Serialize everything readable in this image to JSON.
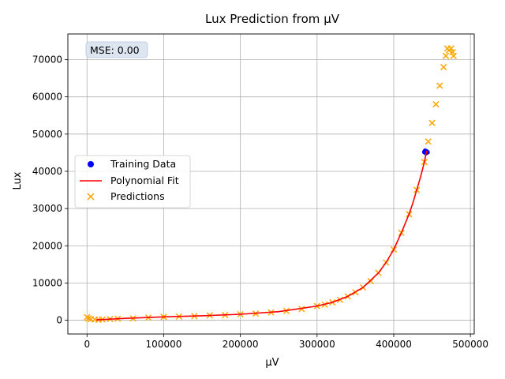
{
  "chart_data": {
    "type": "scatter",
    "title": "Lux Prediction from µV",
    "xlabel": "µV",
    "ylabel": "Lux",
    "xlim": [
      -25000,
      505000
    ],
    "ylim": [
      -3700,
      76900
    ],
    "x_ticks": [
      0,
      100000,
      200000,
      300000,
      400000,
      500000
    ],
    "y_ticks": [
      0,
      10000,
      20000,
      30000,
      40000,
      50000,
      60000,
      70000
    ],
    "grid": true,
    "legend_placement": "center-left",
    "annotation": "MSE: 0.00",
    "colors": {
      "training": "#0000ff",
      "fit": "#ff0000",
      "predictions": "#ffa500"
    },
    "series": [
      {
        "name": "Training Data",
        "kind": "scatter-dot",
        "points": [
          [
            440000,
            45200
          ],
          [
            441000,
            45500
          ],
          [
            442000,
            44900
          ],
          [
            443000,
            45300
          ],
          [
            444000,
            45100
          ]
        ]
      },
      {
        "name": "Polynomial Fit",
        "kind": "line",
        "points": [
          [
            12000,
            100
          ],
          [
            50000,
            500
          ],
          [
            100000,
            900
          ],
          [
            150000,
            1200
          ],
          [
            200000,
            1600
          ],
          [
            250000,
            2300
          ],
          [
            300000,
            3800
          ],
          [
            320000,
            4800
          ],
          [
            340000,
            6400
          ],
          [
            360000,
            8800
          ],
          [
            380000,
            12700
          ],
          [
            390000,
            15500
          ],
          [
            400000,
            19000
          ],
          [
            410000,
            23500
          ],
          [
            420000,
            28500
          ],
          [
            425000,
            31500
          ],
          [
            430000,
            35000
          ],
          [
            435000,
            38500
          ],
          [
            440000,
            42500
          ],
          [
            443000,
            45500
          ]
        ]
      },
      {
        "name": "Predictions",
        "kind": "scatter-x",
        "points": [
          [
            0,
            800
          ],
          [
            2000,
            500
          ],
          [
            5000,
            300
          ],
          [
            10000,
            200
          ],
          [
            15000,
            150
          ],
          [
            20000,
            200
          ],
          [
            30000,
            300
          ],
          [
            40000,
            400
          ],
          [
            60000,
            500
          ],
          [
            80000,
            700
          ],
          [
            100000,
            900
          ],
          [
            120000,
            1000
          ],
          [
            140000,
            1100
          ],
          [
            160000,
            1300
          ],
          [
            180000,
            1400
          ],
          [
            200000,
            1600
          ],
          [
            220000,
            1800
          ],
          [
            240000,
            2100
          ],
          [
            260000,
            2500
          ],
          [
            280000,
            3000
          ],
          [
            300000,
            3800
          ],
          [
            310000,
            4200
          ],
          [
            320000,
            4800
          ],
          [
            330000,
            5500
          ],
          [
            340000,
            6400
          ],
          [
            350000,
            7500
          ],
          [
            360000,
            8800
          ],
          [
            370000,
            10500
          ],
          [
            380000,
            12700
          ],
          [
            390000,
            15500
          ],
          [
            400000,
            19000
          ],
          [
            410000,
            23500
          ],
          [
            420000,
            28500
          ],
          [
            430000,
            35000
          ],
          [
            440000,
            42500
          ],
          [
            445000,
            48000
          ],
          [
            450000,
            53000
          ],
          [
            455000,
            58000
          ],
          [
            460000,
            63000
          ],
          [
            465000,
            68000
          ],
          [
            468000,
            71000
          ],
          [
            470000,
            73000
          ],
          [
            472000,
            72500
          ],
          [
            475000,
            73000
          ],
          [
            477000,
            72000
          ],
          [
            478000,
            71000
          ]
        ]
      }
    ]
  }
}
